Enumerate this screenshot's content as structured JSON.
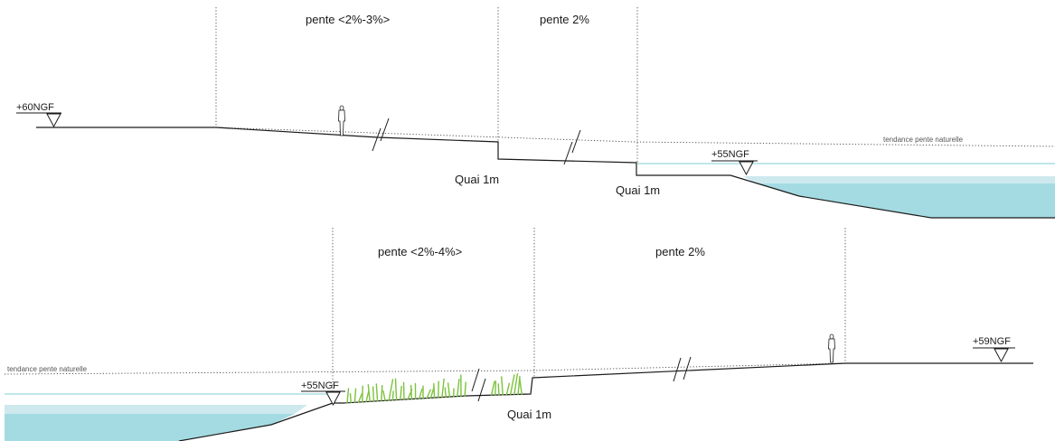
{
  "top": {
    "slope_labels": [
      "pente <2%-3%>",
      "pente 2%"
    ],
    "level_left": "+60NGF",
    "level_water": "+55NGF",
    "quai_labels": [
      "Quai 1m",
      "Quai 1m"
    ],
    "trend_label": "tendance pente naturelle"
  },
  "bottom": {
    "slope_labels": [
      "pente <2%-4%>",
      "pente 2%"
    ],
    "level_water": "+55NGF",
    "level_right": "+59NGF",
    "quai_label": "Quai 1m",
    "trend_label": "tendance pente naturelle"
  },
  "colors": {
    "water_light": "#cde9ee",
    "water_main": "#a4dbe2",
    "water_line": "#7fcfd6",
    "reeds": "#7cc23c",
    "ground": "#1a1a1a"
  },
  "icons": [
    "person-icon",
    "level-marker-icon",
    "break-mark-icon",
    "reed-icon"
  ]
}
